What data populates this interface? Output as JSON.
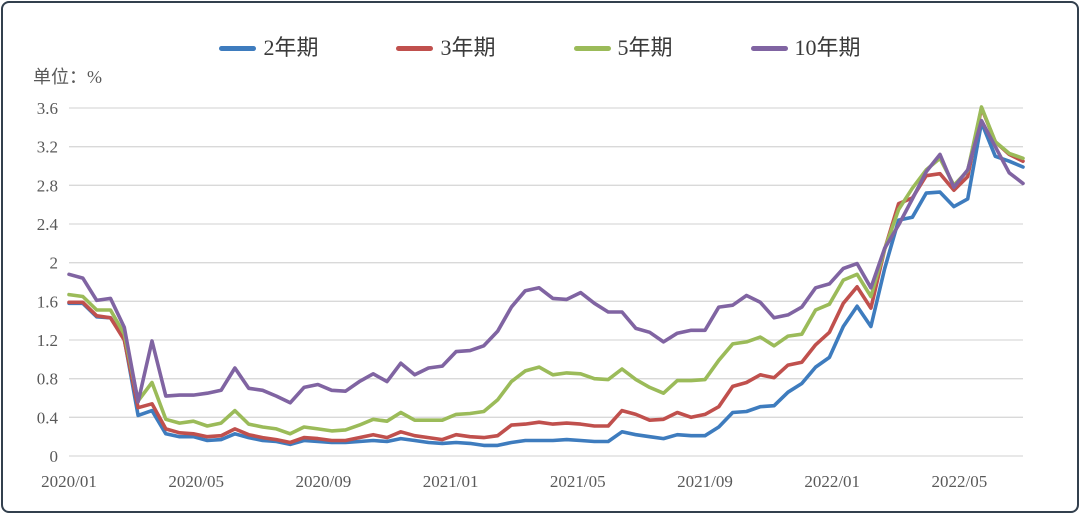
{
  "chart_data": {
    "type": "line",
    "unit_label": "单位：%",
    "legend_position": "top",
    "grid": "horizontal-only",
    "colors": {
      "border": "#33404E",
      "grid": "#D9D9D9",
      "axis_text": "#595959",
      "legend_text": "#3A3A3A",
      "background": "#FFFFFF"
    },
    "y_axis": {
      "min": 0,
      "max": 3.6,
      "step": 0.4,
      "tick_labels_top_to_bottom": [
        "3.6",
        "3.2",
        "2.8",
        "2.4",
        "2",
        "1.6",
        "1.2",
        "0.8",
        "0.4",
        "0"
      ]
    },
    "x_axis": {
      "start": "2020/01",
      "end_approx": "2022/07",
      "month_span": 30,
      "tick_months": [
        0,
        4,
        8,
        12,
        16,
        20,
        24,
        28
      ],
      "tick_labels": [
        "2020/01",
        "2020/05",
        "2020/09",
        "2021/01",
        "2021/05",
        "2021/09",
        "2022/01",
        "2022/05"
      ]
    },
    "series": [
      {
        "name": "2年期",
        "color": "#3E7CBE",
        "values": [
          1.58,
          1.58,
          1.44,
          1.43,
          1.21,
          0.42,
          0.47,
          0.23,
          0.2,
          0.2,
          0.16,
          0.17,
          0.23,
          0.19,
          0.16,
          0.15,
          0.12,
          0.16,
          0.15,
          0.14,
          0.14,
          0.15,
          0.16,
          0.15,
          0.18,
          0.16,
          0.14,
          0.13,
          0.14,
          0.13,
          0.11,
          0.11,
          0.14,
          0.16,
          0.16,
          0.16,
          0.17,
          0.16,
          0.15,
          0.15,
          0.25,
          0.22,
          0.2,
          0.18,
          0.22,
          0.21,
          0.21,
          0.3,
          0.45,
          0.46,
          0.51,
          0.52,
          0.66,
          0.75,
          0.92,
          1.02,
          1.34,
          1.55,
          1.34,
          1.94,
          2.44,
          2.47,
          2.72,
          2.73,
          2.58,
          2.66,
          3.45,
          3.1,
          3.05,
          2.99
        ]
      },
      {
        "name": "3年期",
        "color": "#C0504D",
        "values": [
          1.59,
          1.59,
          1.45,
          1.43,
          1.2,
          0.5,
          0.54,
          0.28,
          0.24,
          0.23,
          0.2,
          0.21,
          0.28,
          0.22,
          0.19,
          0.17,
          0.14,
          0.19,
          0.18,
          0.16,
          0.16,
          0.19,
          0.22,
          0.19,
          0.25,
          0.21,
          0.19,
          0.17,
          0.22,
          0.2,
          0.19,
          0.21,
          0.32,
          0.33,
          0.35,
          0.33,
          0.34,
          0.33,
          0.31,
          0.31,
          0.47,
          0.43,
          0.37,
          0.38,
          0.45,
          0.4,
          0.43,
          0.51,
          0.72,
          0.76,
          0.84,
          0.81,
          0.94,
          0.97,
          1.15,
          1.28,
          1.58,
          1.75,
          1.53,
          2.14,
          2.61,
          2.67,
          2.9,
          2.92,
          2.75,
          2.89,
          3.6,
          3.25,
          3.12,
          3.05
        ]
      },
      {
        "name": "5年期",
        "color": "#9BBB59",
        "values": [
          1.67,
          1.65,
          1.51,
          1.51,
          1.26,
          0.57,
          0.76,
          0.38,
          0.34,
          0.36,
          0.31,
          0.34,
          0.47,
          0.33,
          0.3,
          0.28,
          0.23,
          0.3,
          0.28,
          0.26,
          0.27,
          0.32,
          0.38,
          0.36,
          0.45,
          0.37,
          0.37,
          0.37,
          0.43,
          0.44,
          0.46,
          0.58,
          0.77,
          0.88,
          0.92,
          0.84,
          0.86,
          0.85,
          0.8,
          0.79,
          0.9,
          0.79,
          0.71,
          0.65,
          0.78,
          0.78,
          0.79,
          0.99,
          1.16,
          1.18,
          1.23,
          1.14,
          1.24,
          1.26,
          1.51,
          1.57,
          1.82,
          1.88,
          1.65,
          2.14,
          2.55,
          2.77,
          2.96,
          3.08,
          2.8,
          2.95,
          3.61,
          3.25,
          3.13,
          3.08
        ]
      },
      {
        "name": "10年期",
        "color": "#8064A2",
        "values": [
          1.88,
          1.84,
          1.61,
          1.63,
          1.33,
          0.56,
          1.19,
          0.62,
          0.63,
          0.63,
          0.65,
          0.68,
          0.91,
          0.7,
          0.68,
          0.62,
          0.55,
          0.71,
          0.74,
          0.68,
          0.67,
          0.77,
          0.85,
          0.77,
          0.96,
          0.84,
          0.91,
          0.93,
          1.08,
          1.09,
          1.14,
          1.29,
          1.54,
          1.71,
          1.74,
          1.63,
          1.62,
          1.69,
          1.58,
          1.49,
          1.49,
          1.32,
          1.28,
          1.18,
          1.27,
          1.3,
          1.3,
          1.54,
          1.56,
          1.66,
          1.59,
          1.43,
          1.46,
          1.54,
          1.74,
          1.78,
          1.94,
          1.99,
          1.74,
          2.15,
          2.39,
          2.66,
          2.94,
          3.12,
          2.78,
          2.96,
          3.47,
          3.2,
          2.93,
          2.82
        ]
      }
    ]
  }
}
